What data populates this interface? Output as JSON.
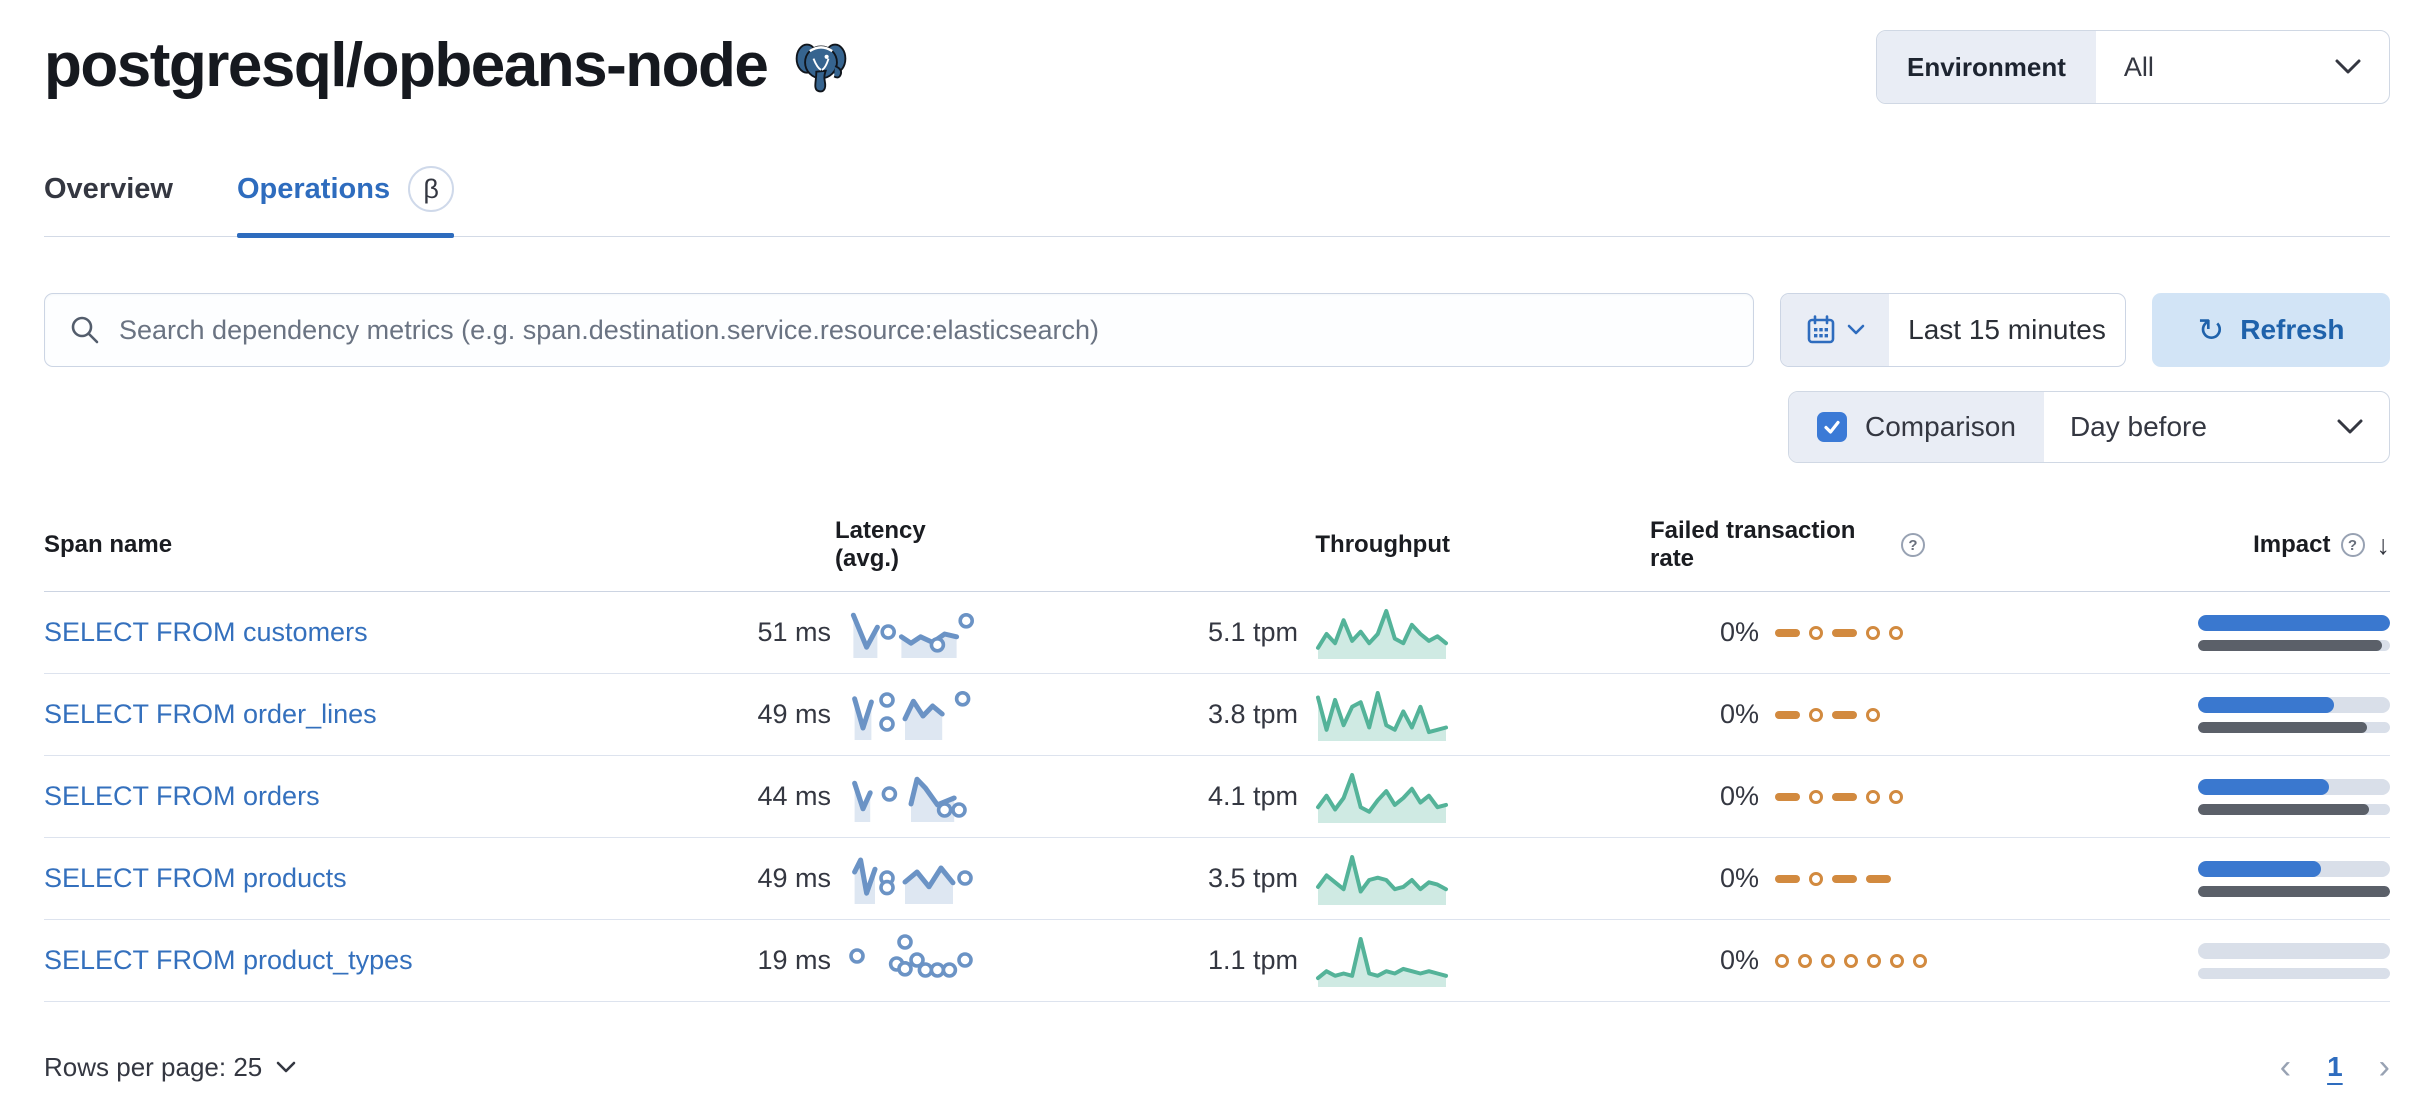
{
  "page": {
    "title": "postgresql/opbeans-node",
    "icon": "postgresql-elephant-icon"
  },
  "env_filter": {
    "label": "Environment",
    "value": "All"
  },
  "tabs": [
    {
      "label": "Overview",
      "active": false
    },
    {
      "label": "Operations",
      "active": true,
      "badge": "β"
    }
  ],
  "search": {
    "placeholder": "Search dependency metrics (e.g. span.destination.service.resource:elasticsearch)",
    "value": "",
    "icon": "search-icon"
  },
  "time_picker": {
    "value": "Last 15 minutes",
    "icon": "calendar-icon"
  },
  "refresh": {
    "label": "Refresh",
    "icon": "refresh-icon"
  },
  "comparison": {
    "label": "Comparison",
    "checked": true,
    "value": "Day before"
  },
  "table": {
    "columns": [
      "Span name",
      "Latency (avg.)",
      "Throughput",
      "Failed transaction rate",
      "Impact"
    ],
    "rows": [
      {
        "name": "SELECT FROM customers",
        "latency": {
          "value": "51 ms",
          "segments": [
            [
              [
                0.02,
                0.08
              ],
              [
                0.13,
                0.88
              ],
              [
                0.22,
                0.38
              ]
            ],
            [
              [
                0.42,
                0.62
              ],
              [
                0.5,
                0.78
              ],
              [
                0.58,
                0.62
              ],
              [
                0.68,
                0.76
              ],
              [
                0.78,
                0.55
              ],
              [
                0.88,
                0.62
              ]
            ]
          ],
          "dots": [
            [
              0.31,
              0.5
            ],
            [
              0.72,
              0.82
            ],
            [
              0.96,
              0.22
            ]
          ]
        },
        "throughput": {
          "value": "5.1 tpm",
          "points": [
            0.2,
            0.5,
            0.3,
            0.8,
            0.35,
            0.55,
            0.3,
            0.5,
            1.0,
            0.4,
            0.3,
            0.7,
            0.5,
            0.35,
            0.45,
            0.3
          ]
        },
        "failed": {
          "value": "0%",
          "pattern": [
            "dash",
            "dot",
            "dash",
            "dot",
            "dot"
          ]
        },
        "impact": {
          "current": 100,
          "previous": 96
        }
      },
      {
        "name": "SELECT FROM order_lines",
        "latency": {
          "value": "49 ms",
          "segments": [
            [
              [
                0.03,
                0.12
              ],
              [
                0.1,
                0.85
              ],
              [
                0.17,
                0.2
              ]
            ],
            [
              [
                0.45,
                0.62
              ],
              [
                0.52,
                0.18
              ],
              [
                0.6,
                0.55
              ],
              [
                0.68,
                0.3
              ],
              [
                0.76,
                0.5
              ]
            ]
          ],
          "dots": [
            [
              0.3,
              0.15
            ],
            [
              0.3,
              0.75
            ],
            [
              0.93,
              0.12
            ]
          ]
        },
        "throughput": {
          "value": "3.8 tpm",
          "points": [
            0.9,
            0.2,
            0.85,
            0.3,
            0.7,
            0.8,
            0.25,
            1.0,
            0.3,
            0.2,
            0.6,
            0.25,
            0.7,
            0.15,
            0.2,
            0.25
          ]
        },
        "failed": {
          "value": "0%",
          "pattern": [
            "dash",
            "dot",
            "dash",
            "dot"
          ]
        },
        "impact": {
          "current": 71,
          "previous": 88
        }
      },
      {
        "name": "SELECT FROM orders",
        "latency": {
          "value": "44 ms",
          "segments": [
            [
              [
                0.03,
                0.18
              ],
              [
                0.1,
                0.82
              ],
              [
                0.16,
                0.42
              ]
            ],
            [
              [
                0.5,
                0.7
              ],
              [
                0.55,
                0.08
              ],
              [
                0.62,
                0.3
              ],
              [
                0.72,
                0.72
              ],
              [
                0.86,
                0.55
              ]
            ]
          ],
          "dots": [
            [
              0.32,
              0.45
            ],
            [
              0.78,
              0.85
            ],
            [
              0.9,
              0.85
            ]
          ]
        },
        "throughput": {
          "value": "4.1 tpm",
          "points": [
            0.3,
            0.55,
            0.25,
            0.5,
            1.0,
            0.3,
            0.2,
            0.45,
            0.65,
            0.35,
            0.5,
            0.7,
            0.4,
            0.55,
            0.3,
            0.35
          ]
        },
        "failed": {
          "value": "0%",
          "pattern": [
            "dash",
            "dot",
            "dash",
            "dot",
            "dot"
          ]
        },
        "impact": {
          "current": 68,
          "previous": 89
        }
      },
      {
        "name": "SELECT FROM products",
        "latency": {
          "value": "49 ms",
          "segments": [
            [
              [
                0.03,
                0.35
              ],
              [
                0.08,
                0.05
              ],
              [
                0.13,
                0.88
              ],
              [
                0.2,
                0.28
              ]
            ],
            [
              [
                0.45,
                0.6
              ],
              [
                0.55,
                0.35
              ],
              [
                0.65,
                0.72
              ],
              [
                0.75,
                0.25
              ],
              [
                0.85,
                0.62
              ]
            ]
          ],
          "dots": [
            [
              0.3,
              0.5
            ],
            [
              0.3,
              0.74
            ],
            [
              0.95,
              0.5
            ]
          ]
        },
        "throughput": {
          "value": "3.5 tpm",
          "points": [
            0.35,
            0.6,
            0.45,
            0.3,
            1.0,
            0.25,
            0.5,
            0.55,
            0.5,
            0.3,
            0.35,
            0.5,
            0.3,
            0.45,
            0.4,
            0.3
          ]
        },
        "failed": {
          "value": "0%",
          "pattern": [
            "dash",
            "dot",
            "dash",
            "dash"
          ]
        },
        "impact": {
          "current": 64,
          "previous": 100
        }
      },
      {
        "name": "SELECT FROM product_types",
        "latency": {
          "value": "19 ms",
          "segments": [],
          "dots": [
            [
              0.05,
              0.4
            ],
            [
              0.45,
              0.05
            ],
            [
              0.38,
              0.6
            ],
            [
              0.45,
              0.72
            ],
            [
              0.55,
              0.5
            ],
            [
              0.62,
              0.75
            ],
            [
              0.72,
              0.75
            ],
            [
              0.82,
              0.75
            ],
            [
              0.95,
              0.5
            ]
          ]
        },
        "throughput": {
          "value": "1.1 tpm",
          "points": [
            0.15,
            0.3,
            0.2,
            0.25,
            0.2,
            1.0,
            0.25,
            0.2,
            0.3,
            0.25,
            0.35,
            0.3,
            0.25,
            0.3,
            0.25,
            0.2
          ]
        },
        "failed": {
          "value": "0%",
          "pattern": [
            "dot",
            "dot",
            "dot",
            "dot",
            "dot",
            "dot",
            "dot"
          ]
        },
        "impact": {
          "current": 0,
          "previous": 0
        }
      }
    ]
  },
  "footer": {
    "rows_per_page": "Rows per page: 25",
    "page": "1"
  },
  "colors": {
    "accent_blue": "#2e6cbe",
    "link_blue": "#3470bd",
    "impact_blue": "#3a78cf",
    "impact_gray": "#5b6069",
    "impact_track": "#d9dfe9",
    "latency_spark": "#6b93c5",
    "throughput_spark": "#54b399",
    "failed_spark": "#d28a3f",
    "refresh_bg": "#d2e4f6",
    "refresh_text": "#1f62ab",
    "segment_bg": "#e9edf5",
    "border": "#d3dae6"
  }
}
